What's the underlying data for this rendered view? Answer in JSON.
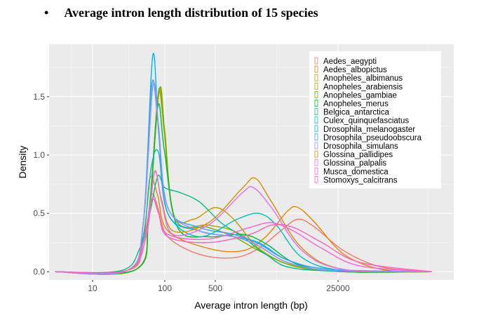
{
  "slide": {
    "bullet": "•",
    "title": "Average intron length distribution of 15 species"
  },
  "chart_data": {
    "type": "line",
    "title": "Average intron length distribution of 15 species",
    "xlabel": "Average intron length (bp)",
    "ylabel": "Density",
    "x_scale": "log10",
    "xlim": [
      2.5,
      1000000
    ],
    "ylim": [
      -0.07,
      1.95
    ],
    "x_ticks": [
      10,
      100,
      500,
      25000
    ],
    "x_tick_labels": [
      "10",
      "100",
      "500",
      "25000"
    ],
    "y_ticks": [
      0.0,
      0.5,
      1.0,
      1.5
    ],
    "y_tick_labels": [
      "0.0",
      "0.5",
      "1.0",
      "1.5"
    ],
    "grid": true,
    "legend_position": "top-right",
    "series": [
      {
        "name": "Aedes_aegypti",
        "color": "#F8766D",
        "points": [
          [
            3,
            0
          ],
          [
            30,
            0.01
          ],
          [
            50,
            0.2
          ],
          [
            65,
            0.65
          ],
          [
            80,
            0.55
          ],
          [
            110,
            0.3
          ],
          [
            300,
            0.15
          ],
          [
            900,
            0.12
          ],
          [
            2000,
            0.2
          ],
          [
            4000,
            0.35
          ],
          [
            7000,
            0.45
          ],
          [
            12000,
            0.38
          ],
          [
            30000,
            0.18
          ],
          [
            100000,
            0.04
          ],
          [
            500000,
            0
          ]
        ]
      },
      {
        "name": "Aedes_albopictus",
        "color": "#E58700",
        "points": [
          [
            3,
            0
          ],
          [
            30,
            0.01
          ],
          [
            50,
            0.25
          ],
          [
            62,
            0.8
          ],
          [
            80,
            0.65
          ],
          [
            110,
            0.35
          ],
          [
            400,
            0.2
          ],
          [
            1200,
            0.18
          ],
          [
            2500,
            0.3
          ],
          [
            5000,
            0.52
          ],
          [
            7000,
            0.55
          ],
          [
            12000,
            0.42
          ],
          [
            30000,
            0.15
          ],
          [
            100000,
            0.02
          ],
          [
            500000,
            0
          ]
        ]
      },
      {
        "name": "Anopheles_albimanus",
        "color": "#C99800",
        "points": [
          [
            3,
            0
          ],
          [
            40,
            0.02
          ],
          [
            60,
            0.5
          ],
          [
            80,
            1.5
          ],
          [
            95,
            1.3
          ],
          [
            130,
            0.5
          ],
          [
            250,
            0.45
          ],
          [
            500,
            0.55
          ],
          [
            900,
            0.45
          ],
          [
            2000,
            0.2
          ],
          [
            6000,
            0.05
          ],
          [
            30000,
            0
          ],
          [
            500000,
            0
          ]
        ]
      },
      {
        "name": "Anopheles_arabiensis",
        "color": "#A3A500",
        "points": [
          [
            3,
            0
          ],
          [
            40,
            0.02
          ],
          [
            60,
            0.5
          ],
          [
            82,
            1.55
          ],
          [
            98,
            1.2
          ],
          [
            140,
            0.45
          ],
          [
            400,
            0.4
          ],
          [
            900,
            0.35
          ],
          [
            2000,
            0.22
          ],
          [
            6000,
            0.06
          ],
          [
            30000,
            0
          ],
          [
            500000,
            0
          ]
        ]
      },
      {
        "name": "Anopheles_gambiae",
        "color": "#6BB100",
        "points": [
          [
            3,
            0
          ],
          [
            40,
            0.02
          ],
          [
            60,
            0.5
          ],
          [
            84,
            1.56
          ],
          [
            100,
            1.2
          ],
          [
            140,
            0.45
          ],
          [
            400,
            0.38
          ],
          [
            900,
            0.3
          ],
          [
            2000,
            0.18
          ],
          [
            6000,
            0.05
          ],
          [
            30000,
            0
          ],
          [
            500000,
            0
          ]
        ]
      },
      {
        "name": "Anopheles_merus",
        "color": "#00BA38",
        "points": [
          [
            3,
            0
          ],
          [
            40,
            0.02
          ],
          [
            60,
            0.45
          ],
          [
            80,
            1.42
          ],
          [
            98,
            1.05
          ],
          [
            150,
            0.38
          ],
          [
            400,
            0.3
          ],
          [
            1200,
            0.32
          ],
          [
            2500,
            0.24
          ],
          [
            7000,
            0.06
          ],
          [
            30000,
            0
          ],
          [
            500000,
            0
          ]
        ]
      },
      {
        "name": "Belgica_antarctica",
        "color": "#00BF7D",
        "points": [
          [
            3,
            0
          ],
          [
            25,
            0.01
          ],
          [
            45,
            0.2
          ],
          [
            62,
            0.5
          ],
          [
            80,
            0.82
          ],
          [
            100,
            0.72
          ],
          [
            160,
            0.68
          ],
          [
            300,
            0.6
          ],
          [
            600,
            0.42
          ],
          [
            1200,
            0.3
          ],
          [
            2500,
            0.15
          ],
          [
            8000,
            0.02
          ],
          [
            500000,
            0
          ]
        ]
      },
      {
        "name": "Culex_quinquefasciatus",
        "color": "#00C0B8",
        "points": [
          [
            3,
            0
          ],
          [
            30,
            0.01
          ],
          [
            50,
            0.3
          ],
          [
            65,
            0.9
          ],
          [
            82,
            1.02
          ],
          [
            110,
            0.5
          ],
          [
            300,
            0.3
          ],
          [
            1000,
            0.45
          ],
          [
            2000,
            0.5
          ],
          [
            3500,
            0.4
          ],
          [
            8000,
            0.12
          ],
          [
            30000,
            0.01
          ],
          [
            500000,
            0
          ]
        ]
      },
      {
        "name": "Drosophila_melanogaster",
        "color": "#00B0F6",
        "points": [
          [
            3,
            0
          ],
          [
            30,
            0.01
          ],
          [
            50,
            0.4
          ],
          [
            68,
            1.85
          ],
          [
            82,
            1.2
          ],
          [
            110,
            0.5
          ],
          [
            300,
            0.35
          ],
          [
            900,
            0.3
          ],
          [
            2000,
            0.25
          ],
          [
            5000,
            0.1
          ],
          [
            20000,
            0.02
          ],
          [
            500000,
            0
          ]
        ]
      },
      {
        "name": "Drosophila_pseudoobscura",
        "color": "#35A2FF",
        "points": [
          [
            3,
            0
          ],
          [
            30,
            0.01
          ],
          [
            50,
            0.4
          ],
          [
            66,
            1.6
          ],
          [
            80,
            1.3
          ],
          [
            110,
            0.55
          ],
          [
            300,
            0.38
          ],
          [
            900,
            0.32
          ],
          [
            2000,
            0.24
          ],
          [
            5000,
            0.1
          ],
          [
            20000,
            0.02
          ],
          [
            500000,
            0
          ]
        ]
      },
      {
        "name": "Drosophila_simulans",
        "color": "#9590FF",
        "points": [
          [
            3,
            0
          ],
          [
            30,
            0.01
          ],
          [
            50,
            0.4
          ],
          [
            68,
            1.58
          ],
          [
            82,
            1.25
          ],
          [
            110,
            0.55
          ],
          [
            300,
            0.35
          ],
          [
            900,
            0.3
          ],
          [
            2000,
            0.22
          ],
          [
            5000,
            0.08
          ],
          [
            20000,
            0.01
          ],
          [
            500000,
            0
          ]
        ]
      },
      {
        "name": "Glossina_pallidipes",
        "color": "#D89000",
        "points": [
          [
            3,
            0
          ],
          [
            30,
            0.01
          ],
          [
            55,
            0.3
          ],
          [
            72,
            0.85
          ],
          [
            90,
            0.62
          ],
          [
            130,
            0.35
          ],
          [
            400,
            0.42
          ],
          [
            1200,
            0.72
          ],
          [
            1800,
            0.8
          ],
          [
            3000,
            0.6
          ],
          [
            8000,
            0.2
          ],
          [
            30000,
            0.02
          ],
          [
            500000,
            0
          ]
        ]
      },
      {
        "name": "Glossina_palpalis",
        "color": "#E76BF3",
        "points": [
          [
            3,
            0
          ],
          [
            30,
            0.01
          ],
          [
            55,
            0.3
          ],
          [
            72,
            0.86
          ],
          [
            90,
            0.6
          ],
          [
            130,
            0.32
          ],
          [
            400,
            0.4
          ],
          [
            1200,
            0.68
          ],
          [
            1700,
            0.72
          ],
          [
            3000,
            0.55
          ],
          [
            8000,
            0.18
          ],
          [
            30000,
            0.02
          ],
          [
            500000,
            0
          ]
        ]
      },
      {
        "name": "Musca_domestica",
        "color": "#FA62DB",
        "points": [
          [
            3,
            0
          ],
          [
            30,
            0.01
          ],
          [
            50,
            0.25
          ],
          [
            66,
            0.62
          ],
          [
            82,
            0.5
          ],
          [
            110,
            0.32
          ],
          [
            400,
            0.28
          ],
          [
            1500,
            0.38
          ],
          [
            3000,
            0.42
          ],
          [
            6000,
            0.35
          ],
          [
            15000,
            0.2
          ],
          [
            50000,
            0.05
          ],
          [
            500000,
            0
          ]
        ]
      },
      {
        "name": "Stomoxys_calcitrans",
        "color": "#FF62BC",
        "points": [
          [
            3,
            0
          ],
          [
            30,
            0.01
          ],
          [
            50,
            0.25
          ],
          [
            66,
            0.62
          ],
          [
            82,
            0.5
          ],
          [
            110,
            0.3
          ],
          [
            400,
            0.25
          ],
          [
            1500,
            0.32
          ],
          [
            3000,
            0.4
          ],
          [
            6000,
            0.38
          ],
          [
            15000,
            0.25
          ],
          [
            50000,
            0.08
          ],
          [
            500000,
            0
          ]
        ]
      }
    ]
  }
}
